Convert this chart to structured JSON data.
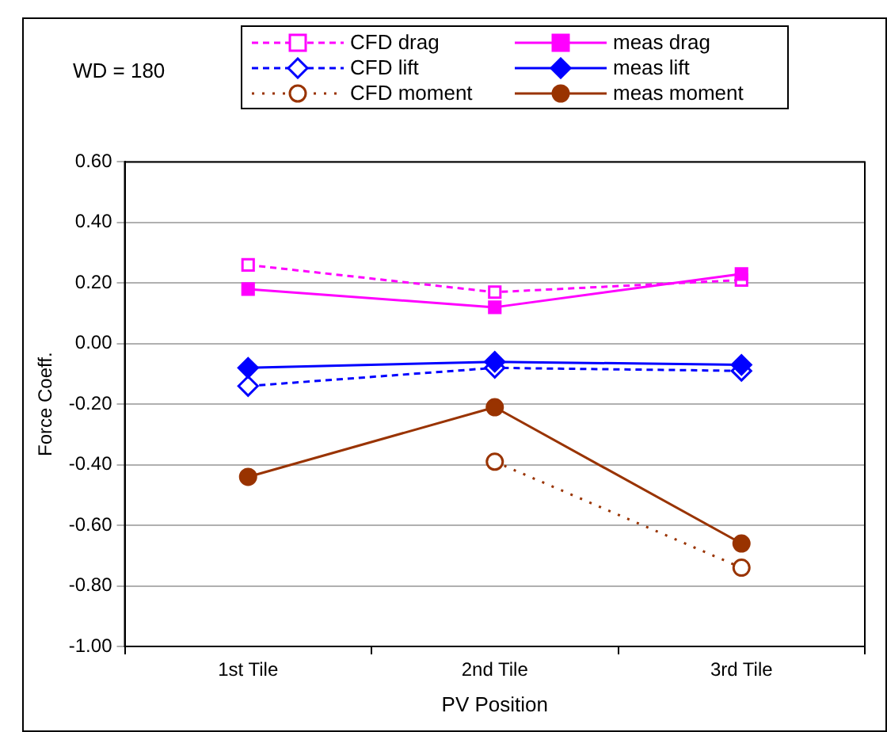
{
  "chart_data": {
    "type": "line",
    "xlabel": "PV Position",
    "ylabel": "Force Coeff.",
    "annotations": [
      "WD = 180"
    ],
    "categories": [
      "1st Tile",
      "2nd Tile",
      "3rd Tile"
    ],
    "ylim": [
      -1,
      0.6
    ],
    "yticks": [
      {
        "value": -1,
        "label": "-1.00"
      },
      {
        "value": -0.8,
        "label": "-0.80"
      },
      {
        "value": -0.6,
        "label": "-0.60"
      },
      {
        "value": -0.4,
        "label": "-0.40"
      },
      {
        "value": -0.2,
        "label": "-0.20"
      },
      {
        "value": 0,
        "label": "0.00"
      },
      {
        "value": 0.2,
        "label": "0.20"
      },
      {
        "value": 0.4,
        "label": "0.40"
      },
      {
        "value": 0.6,
        "label": "0.60"
      }
    ],
    "grid": "y",
    "legend": "top",
    "series": [
      {
        "name": "CFD drag",
        "color": "#ff00ff",
        "values": [
          0.26,
          0.17,
          0.21
        ],
        "marker": "square",
        "line_style": "dashed"
      },
      {
        "name": "meas drag",
        "color": "#ff00ff",
        "values": [
          0.18,
          0.12,
          0.23
        ],
        "marker": "square",
        "line_style": "solid"
      },
      {
        "name": "CFD lift",
        "color": "#0000ff",
        "values": [
          -0.14,
          -0.08,
          -0.09
        ],
        "marker": "diamond",
        "line_style": "dashed"
      },
      {
        "name": "meas lift",
        "color": "#0000ff",
        "values": [
          -0.08,
          -0.06,
          -0.07
        ],
        "marker": "diamond",
        "line_style": "solid"
      },
      {
        "name": "CFD moment",
        "color": "#993300",
        "values": [
          null,
          -0.39,
          -0.74
        ],
        "marker": "circle",
        "line_style": "dotted"
      },
      {
        "name": "meas moment",
        "color": "#993300",
        "values": [
          -0.44,
          -0.21,
          -0.66
        ],
        "marker": "circle",
        "line_style": "solid"
      }
    ]
  }
}
